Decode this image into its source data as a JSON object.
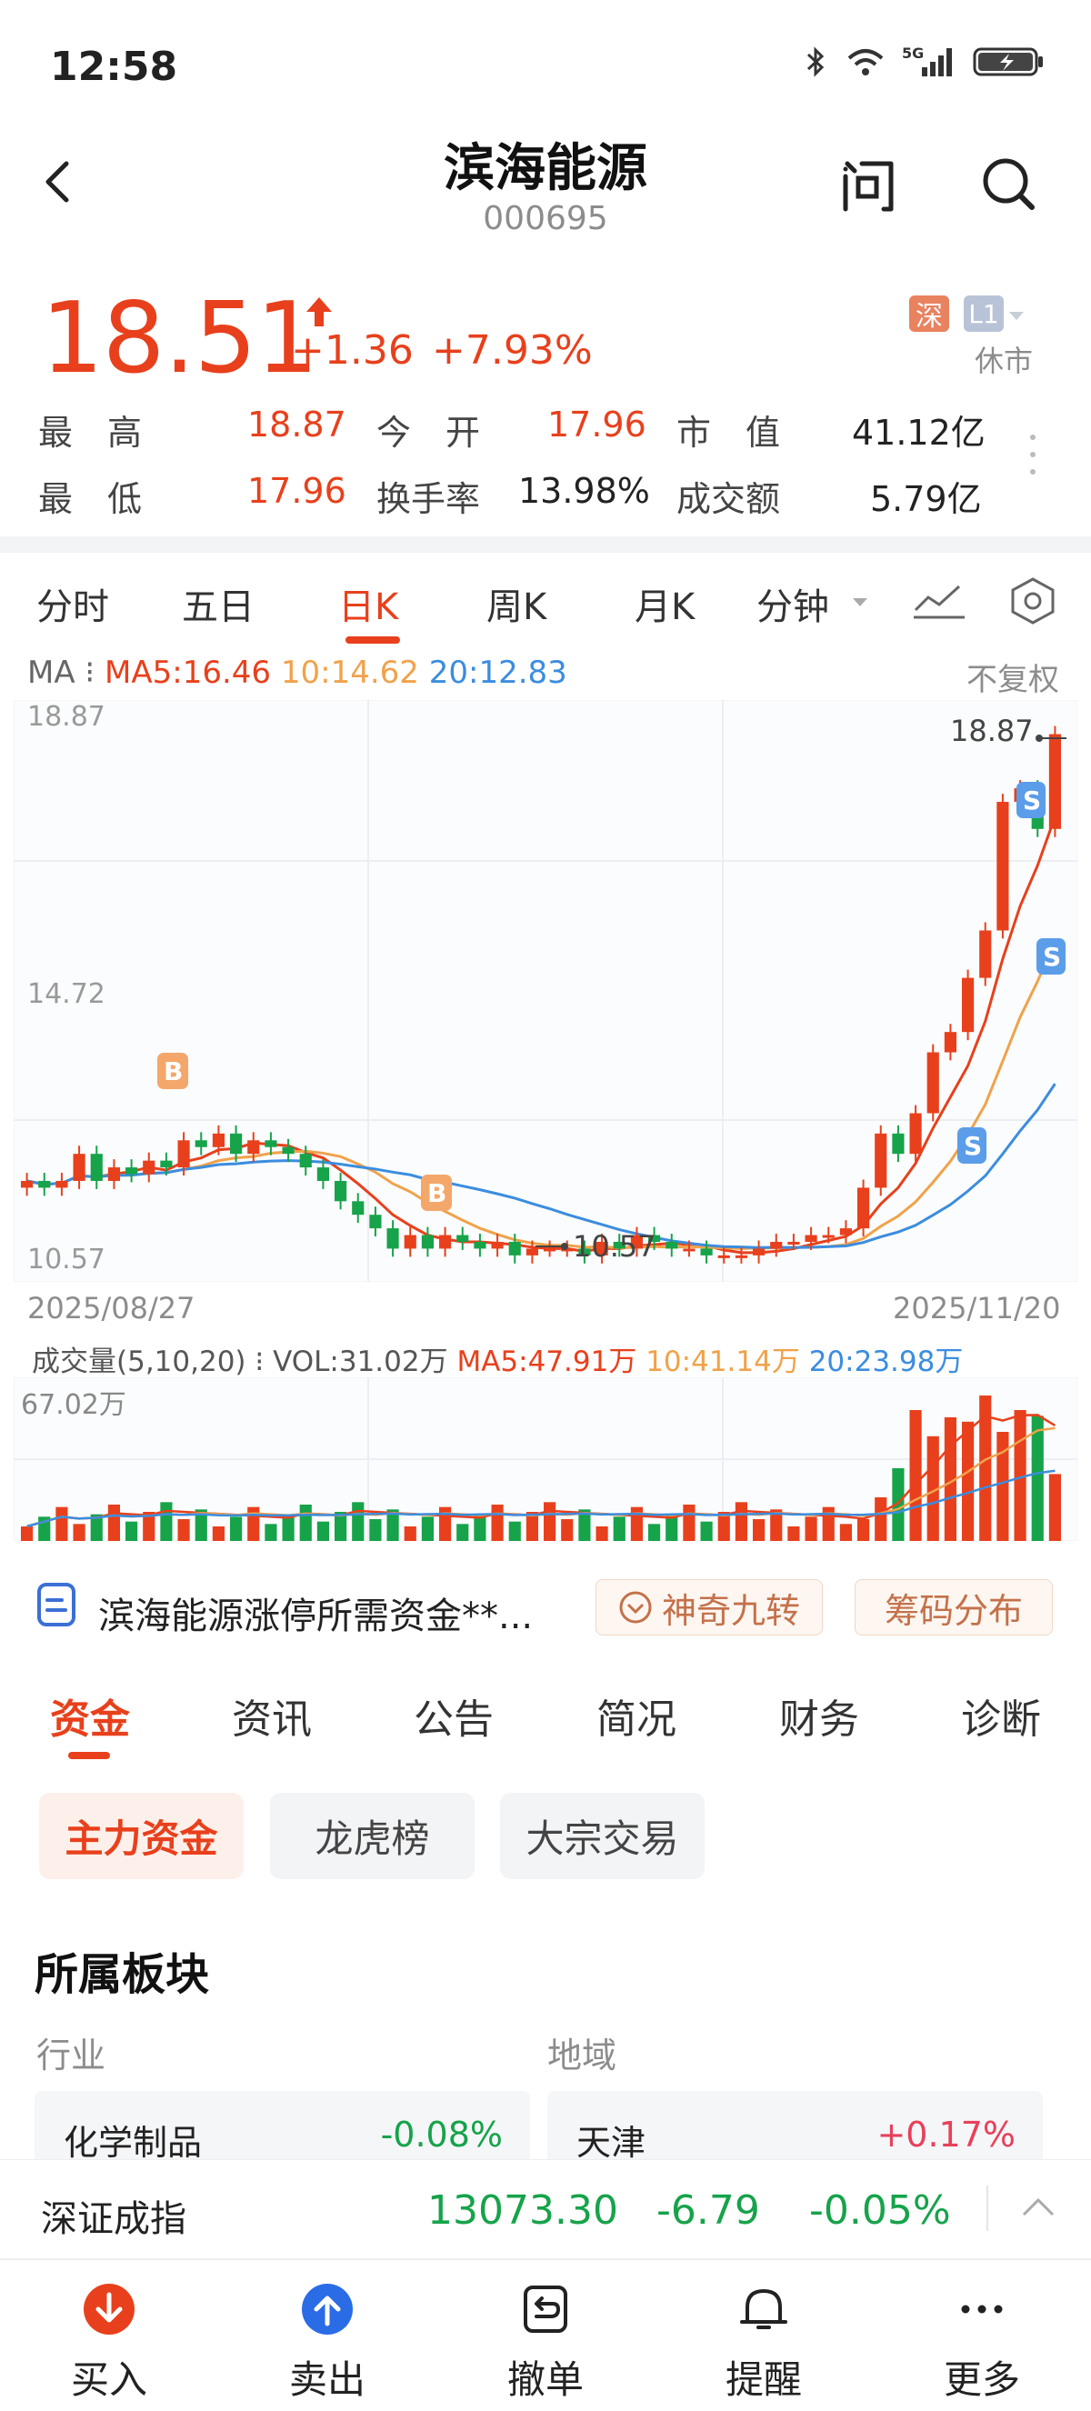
{
  "status_bar": {
    "time": "12:58",
    "network": "5G"
  },
  "header": {
    "name": "滨海能源",
    "code": "000695"
  },
  "quote": {
    "price": "18.51",
    "change": "+1.36",
    "change_pct": "+7.93%",
    "exchange_badge": "深",
    "level_badge": "L1",
    "market_status": "休市"
  },
  "stats": {
    "high_label": "最　高",
    "high": "18.87",
    "open_label": "今　开",
    "open": "17.96",
    "mcap_label": "市　值",
    "mcap": "41.12亿",
    "low_label": "最　低",
    "low": "17.96",
    "turnover_label": "换手率",
    "turnover": "13.98%",
    "amount_label": "成交额",
    "amount": "5.79亿"
  },
  "chart_tabs": [
    "分时",
    "五日",
    "日K",
    "周K",
    "月K",
    "分钟"
  ],
  "chart_tab_active": "日K",
  "ma": {
    "label": "MA",
    "ma5": "MA5:16.46",
    "ma10": "10:14.62",
    "ma20": "20:12.83",
    "adjust": "不复权"
  },
  "kline": {
    "y_top": "18.87",
    "y_mid": "14.72",
    "y_bot": "10.57",
    "start_date": "2025/08/27",
    "end_date": "2025/11/20",
    "high_annot": "18.87",
    "low_annot": "10.57",
    "markers": {
      "buy": "B",
      "sell": "S"
    }
  },
  "volume": {
    "label": "成交量(5,10,20)",
    "vol": "VOL:31.02万",
    "ma5": "MA5:47.91万",
    "ma10": "10:41.14万",
    "ma20": "20:23.98万",
    "y_max": "67.02万"
  },
  "chart_data": {
    "type": "candlestick",
    "x": [
      "2025/08/27",
      "2025/11/20"
    ],
    "ylim": [
      10.57,
      18.87
    ],
    "y_ticks": [
      18.87,
      14.72,
      10.57
    ],
    "last_close": 18.51,
    "high": 18.87,
    "low": 10.57,
    "ma5": 16.46,
    "ma10": 14.62,
    "ma20": 12.83,
    "series_colors": {
      "up": "#e8401c",
      "down": "#16a34a",
      "ma5": "#e8401c",
      "ma10": "#f0a24b",
      "ma20": "#3b8ddf"
    },
    "volume": {
      "last": "31.02万",
      "max": "67.02万"
    }
  },
  "banner": {
    "text": "滨海能源涨停所需资金**...",
    "btn1": "神奇九转",
    "btn2": "筹码分布"
  },
  "bottom_tabs": [
    "资金",
    "资讯",
    "公告",
    "简况",
    "财务",
    "诊断"
  ],
  "sub_tabs": [
    "主力资金",
    "龙虎榜",
    "大宗交易"
  ],
  "sector": {
    "title": "所属板块",
    "industry_label": "行业",
    "region_label": "地域",
    "industry_name": "化学制品",
    "industry_chg": "-0.08%",
    "region_name": "天津",
    "region_chg": "+0.17%"
  },
  "index": {
    "name": "深证成指",
    "value": "13073.30",
    "change": "-6.79",
    "change_pct": "-0.05%"
  },
  "nav": {
    "buy": "买入",
    "sell": "卖出",
    "cancel": "撤单",
    "alert": "提醒",
    "more": "更多"
  }
}
